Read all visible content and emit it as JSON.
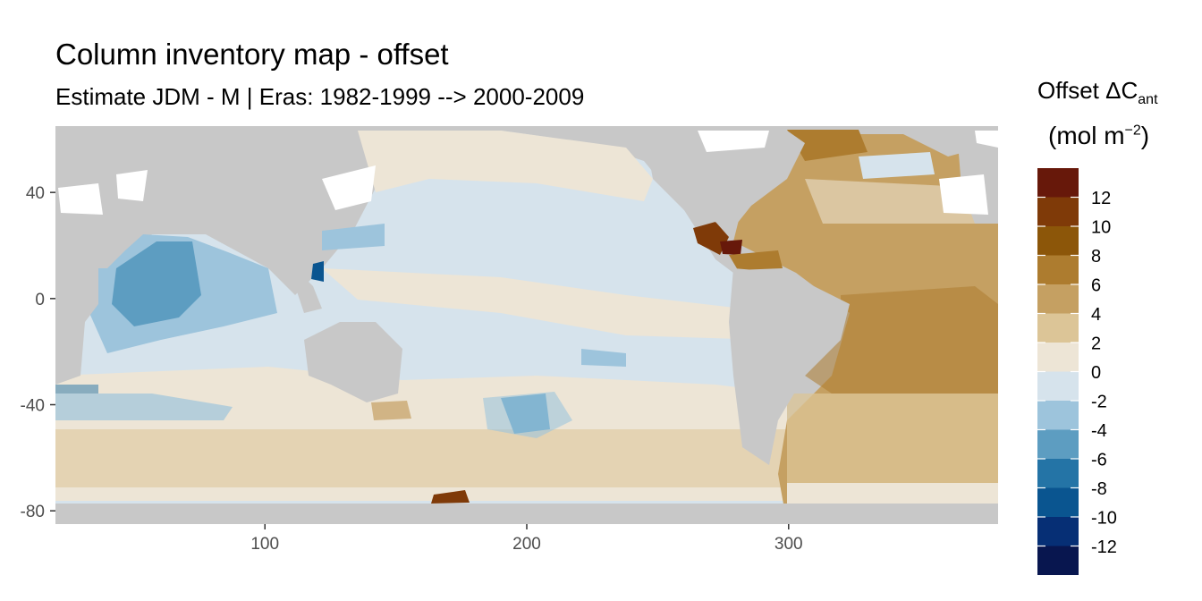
{
  "title": "Column inventory map - offset",
  "subtitle": "Estimate JDM - M | Eras: 1982-1999 --> 2000-2009",
  "legend": {
    "title_main": "Offset ΔC",
    "title_sub": "ant",
    "unit_main": "(mol m",
    "unit_sup": "−2",
    "unit_close": ")",
    "bins": [
      {
        "label": "12",
        "color": "#67180a"
      },
      {
        "label": "10",
        "color": "#7f3a08"
      },
      {
        "label": "8",
        "color": "#8c5609"
      },
      {
        "label": "6",
        "color": "#ad7c2f"
      },
      {
        "label": "4",
        "color": "#c5a062"
      },
      {
        "label": "2",
        "color": "#dcc597"
      },
      {
        "label": "0",
        "color": "#ede5d6"
      },
      {
        "label": "-2",
        "color": "#d6e3ec"
      },
      {
        "label": "-4",
        "color": "#9dc4dc"
      },
      {
        "label": "-6",
        "color": "#5d9dc1"
      },
      {
        "label": "-8",
        "color": "#2474a6"
      },
      {
        "label": "-10",
        "color": "#0a5590"
      },
      {
        "label": "-12",
        "color": "#062f75"
      }
    ],
    "bottom_color": "#08164f"
  },
  "colors": {
    "land": "#c8c8c8",
    "panel_background": "#c8c8c8",
    "no_data": "#ffffff"
  },
  "x_axis": {
    "ticks": [
      "100",
      "200",
      "300"
    ],
    "values": [
      100,
      200,
      300
    ],
    "range": [
      20,
      380
    ]
  },
  "y_axis": {
    "ticks": [
      "40",
      "0",
      "-40",
      "-80"
    ],
    "values": [
      40,
      0,
      -40,
      -80
    ],
    "range": [
      -85,
      65
    ]
  }
}
